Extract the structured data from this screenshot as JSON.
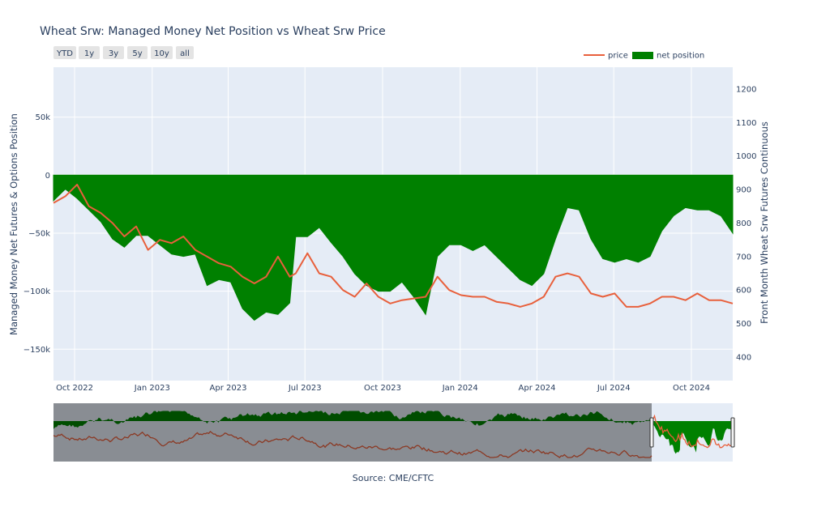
{
  "chart_data": {
    "type": "area",
    "title": "Wheat Srw: Managed Money Net Position vs Wheat Srw Price",
    "ylabel": "Managed Money Net Futures & Options Position",
    "y2label": "Front Month Wheat Srw Futures Continuous",
    "source": "Source: CME/CFTC",
    "range_buttons": [
      "YTD",
      "1y",
      "3y",
      "5y",
      "10y",
      "all"
    ],
    "legend": {
      "placement": "top-right",
      "items": [
        "price",
        "net position"
      ]
    },
    "colors": {
      "price": "#e8603c",
      "net_position": "#008000",
      "plot_bg": "#e5ecf6",
      "grid": "#ffffff"
    },
    "x_ticks": [
      "Oct 2022",
      "Jan 2023",
      "Apr 2023",
      "Jul 2023",
      "Oct 2023",
      "Jan 2024",
      "Apr 2024",
      "Jul 2024",
      "Oct 2024"
    ],
    "x_tick_dates": [
      "2022-10-01",
      "2023-01-01",
      "2023-04-01",
      "2023-07-01",
      "2023-10-01",
      "2024-01-01",
      "2024-04-01",
      "2024-07-01",
      "2024-10-01"
    ],
    "xlim": [
      "2022-09-06",
      "2024-11-19"
    ],
    "y_ticks": [
      50000,
      0,
      -50000,
      -100000,
      -150000
    ],
    "y_tick_labels": [
      "50k",
      "0",
      "−50k",
      "−100k",
      "−150k"
    ],
    "ylim": [
      -177000,
      93000
    ],
    "y2_ticks": [
      1200,
      1100,
      1000,
      900,
      800,
      700,
      600,
      500,
      400
    ],
    "y2lim": [
      330,
      1265
    ],
    "series": [
      {
        "name": "net position",
        "dates": [
          "2022-09-06",
          "2022-09-20",
          "2022-10-04",
          "2022-10-18",
          "2022-11-01",
          "2022-11-15",
          "2022-11-29",
          "2022-12-13",
          "2022-12-27",
          "2023-01-10",
          "2023-01-24",
          "2023-02-07",
          "2023-02-21",
          "2023-03-07",
          "2023-03-21",
          "2023-04-04",
          "2023-04-18",
          "2023-05-02",
          "2023-05-16",
          "2023-05-30",
          "2023-06-13",
          "2023-06-20",
          "2023-07-04",
          "2023-07-18",
          "2023-08-01",
          "2023-08-15",
          "2023-08-29",
          "2023-09-12",
          "2023-09-26",
          "2023-10-10",
          "2023-10-24",
          "2023-11-07",
          "2023-11-21",
          "2023-12-05",
          "2023-12-19",
          "2024-01-02",
          "2024-01-16",
          "2024-01-30",
          "2024-02-13",
          "2024-02-27",
          "2024-03-12",
          "2024-03-26",
          "2024-04-09",
          "2024-04-23",
          "2024-05-07",
          "2024-05-21",
          "2024-06-04",
          "2024-06-18",
          "2024-07-02",
          "2024-07-16",
          "2024-07-30",
          "2024-08-13",
          "2024-08-27",
          "2024-09-10",
          "2024-09-24",
          "2024-10-08",
          "2024-10-22",
          "2024-11-05",
          "2024-11-19"
        ],
        "values": [
          -22000,
          -12000,
          -20000,
          -30000,
          -40000,
          -55000,
          -62000,
          -52000,
          -52000,
          -60000,
          -68000,
          -70000,
          -68000,
          -95000,
          -90000,
          -92000,
          -115000,
          -125000,
          -118000,
          -120000,
          -110000,
          -53000,
          -53000,
          -45000,
          -58000,
          -70000,
          -85000,
          -95000,
          -100000,
          -100000,
          -92000,
          -105000,
          -120000,
          -70000,
          -60000,
          -60000,
          -65000,
          -60000,
          -70000,
          -80000,
          -90000,
          -95000,
          -85000,
          -55000,
          -28000,
          -30000,
          -55000,
          -72000,
          -75000,
          -72000,
          -75000,
          -70000,
          -48000,
          -35000,
          -28000,
          -30000,
          -30000,
          -35000,
          -50000
        ]
      },
      {
        "name": "price",
        "dates": [
          "2022-09-06",
          "2022-09-20",
          "2022-10-04",
          "2022-10-18",
          "2022-11-01",
          "2022-11-15",
          "2022-11-29",
          "2022-12-13",
          "2022-12-27",
          "2023-01-10",
          "2023-01-24",
          "2023-02-07",
          "2023-02-21",
          "2023-03-07",
          "2023-03-21",
          "2023-04-04",
          "2023-04-18",
          "2023-05-02",
          "2023-05-16",
          "2023-05-30",
          "2023-06-13",
          "2023-06-20",
          "2023-07-04",
          "2023-07-18",
          "2023-08-01",
          "2023-08-15",
          "2023-08-29",
          "2023-09-12",
          "2023-09-26",
          "2023-10-10",
          "2023-10-24",
          "2023-11-07",
          "2023-11-21",
          "2023-12-05",
          "2023-12-19",
          "2024-01-02",
          "2024-01-16",
          "2024-01-30",
          "2024-02-13",
          "2024-02-27",
          "2024-03-12",
          "2024-03-26",
          "2024-04-09",
          "2024-04-23",
          "2024-05-07",
          "2024-05-21",
          "2024-06-04",
          "2024-06-18",
          "2024-07-02",
          "2024-07-16",
          "2024-07-30",
          "2024-08-13",
          "2024-08-27",
          "2024-09-10",
          "2024-09-24",
          "2024-10-08",
          "2024-10-22",
          "2024-11-05",
          "2024-11-19"
        ],
        "values": [
          860,
          880,
          915,
          850,
          830,
          800,
          760,
          790,
          720,
          750,
          740,
          760,
          720,
          700,
          680,
          670,
          640,
          620,
          640,
          700,
          640,
          650,
          710,
          650,
          640,
          600,
          580,
          620,
          580,
          560,
          570,
          575,
          580,
          640,
          600,
          585,
          580,
          580,
          565,
          560,
          550,
          560,
          580,
          640,
          650,
          640,
          590,
          580,
          590,
          550,
          550,
          560,
          580,
          580,
          570,
          590,
          570,
          570,
          560
        ]
      }
    ],
    "navigator": {
      "series": [
        "price",
        "net position"
      ],
      "shaded_window": "2022-09-06 – 2024-11-19"
    }
  }
}
